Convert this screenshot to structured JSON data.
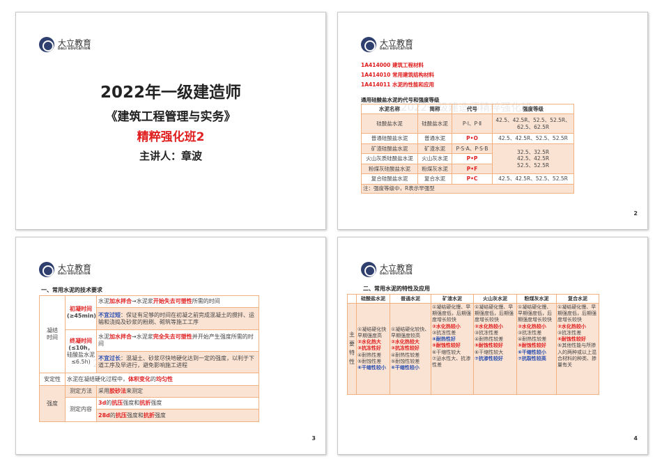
{
  "brand": {
    "cn": "大立教育",
    "en": "DALI EDUCATION"
  },
  "watermark": "2022一级建造师精粹强化班",
  "slide1": {
    "title": "2022年一级建造师",
    "subtitle": "《建筑工程管理与实务》",
    "course": "精粹强化班2",
    "lecturer": "主讲人：章波"
  },
  "slide2": {
    "page": "2",
    "codes": [
      "1A414000  建筑工程材料",
      "1A414010  常用建筑结构材料",
      "1A414011  水泥的性能和应用"
    ],
    "table_title": "通用硅酸盐水泥的代号和强度等级",
    "headers": [
      "水泥名称",
      "简称",
      "代号",
      "强度等级"
    ],
    "rows": [
      {
        "name": "硅酸盐水泥",
        "short": "硅酸盐水泥",
        "code": "P·Ⅰ、P·Ⅱ",
        "grade": "42.5、42.5R、52.5、52.5R、62.5、62.5R"
      },
      {
        "name": "普通硅酸盐水泥",
        "short": "普通水泥",
        "code": "P•O",
        "grade": "42.5、42.5R、52.5、52.5R"
      },
      {
        "name": "矿渣硅酸盐水泥",
        "short": "矿渣水泥",
        "code": "P·S·A、P·S·B",
        "grade": "32.5、32.5R 42.5、42.5R 52.5、52.5R"
      },
      {
        "name": "火山灰质硅酸盐水泥",
        "short": "火山灰水泥",
        "code": "P•P"
      },
      {
        "name": "粉煤灰硅酸盐水泥",
        "short": "粉煤灰水泥",
        "code": "P•F"
      },
      {
        "name": "复合硅酸盐水泥",
        "short": "复合水泥",
        "code": "P•C",
        "grade": "42.5、42.5R、52.5、52.5R"
      }
    ],
    "note": "注：强度等级中，R表示早强型"
  },
  "slide3": {
    "page": "3",
    "heading": "一、常用水泥的技术要求",
    "setting_time": "凝结时间",
    "initial": {
      "label": "初凝时间",
      "limit": "(≥45min)",
      "def": [
        {
          "t": "水泥"
        },
        {
          "t": "加水拌合",
          "c": "r"
        },
        {
          "t": "→水泥浆"
        },
        {
          "t": "开始失去可塑性",
          "c": "r"
        },
        {
          "t": "所需的时间"
        }
      ],
      "note": [
        {
          "t": "不宜过短",
          "c": "b"
        },
        {
          "t": "：保证有足够的时间在初凝之前完成混凝土的搅拌、运输和浇捣及砂浆的粉刷、砌筑等施工工序"
        }
      ]
    },
    "final": {
      "label": "终凝时间",
      "limit": "(≤10h，",
      "limit2": "硅酸盐水泥≤6.5h)",
      "def": [
        {
          "t": "水泥"
        },
        {
          "t": "加水拌合",
          "c": "r"
        },
        {
          "t": "→水泥浆"
        },
        {
          "t": "完全失去可塑性",
          "c": "r"
        },
        {
          "t": "并开始产生强度所需的时间"
        }
      ],
      "note": [
        {
          "t": "不宜过长",
          "c": "b"
        },
        {
          "t": "：混凝土、砂浆尽快地硬化达到一定的强度，以利于下道工序及早进行，避免影响施工进程"
        }
      ]
    },
    "soundness": {
      "label": "安定性",
      "text": [
        {
          "t": "水泥在凝结硬化过程中，"
        },
        {
          "t": "体积变化",
          "c": "r"
        },
        {
          "t": "的"
        },
        {
          "t": "均匀性",
          "c": "r"
        }
      ]
    },
    "strength": {
      "label": "强度",
      "method_label": "测定方法",
      "method": [
        {
          "t": "采用"
        },
        {
          "t": "胶砂法",
          "c": "r"
        },
        {
          "t": "来测定"
        }
      ],
      "content_label": "测定内容",
      "c1": [
        {
          "t": "3d",
          "c": "r"
        },
        {
          "t": "的"
        },
        {
          "t": "抗压",
          "c": "r"
        },
        {
          "t": "强度和"
        },
        {
          "t": "抗折",
          "c": "r"
        },
        {
          "t": "强度"
        }
      ],
      "c2": [
        {
          "t": "28d",
          "c": "r"
        },
        {
          "t": "的"
        },
        {
          "t": "抗压",
          "c": "r"
        },
        {
          "t": "强度和"
        },
        {
          "t": "抗折",
          "c": "r"
        },
        {
          "t": "强度"
        }
      ]
    }
  },
  "slide4": {
    "page": "4",
    "heading": "二、常用水泥的特性及应用",
    "headers": [
      "",
      "硅酸盐水泥",
      "普通水泥",
      "矿渣水泥",
      "火山灰水泥",
      "粉煤灰水泥",
      "复合水泥"
    ],
    "row_label": "主要特性",
    "cells": [
      [
        {
          "t": "①凝结硬化快早期强度高"
        },
        {
          "t": "②水化热大",
          "c": "r"
        },
        {
          "t": "③抗冻性好",
          "c": "r"
        },
        {
          "t": "④耐热性差"
        },
        {
          "t": "⑤耐蚀性差"
        },
        {
          "t": "⑥干缩性较小",
          "c": "b"
        }
      ],
      [
        {
          "t": "①凝结硬化较快、早期强度较高"
        },
        {
          "t": "②水化热较大",
          "c": "r"
        },
        {
          "t": "③抗冻性较好",
          "c": "r"
        },
        {
          "t": "④耐热性较差"
        },
        {
          "t": "⑤耐蚀性较差"
        },
        {
          "t": "⑥干缩性较小",
          "c": "b"
        }
      ],
      [
        {
          "t": "①凝结硬化慢、早期强度低，后期强度增长较快"
        },
        {
          "t": "②水化热较小",
          "c": "r"
        },
        {
          "t": "③抗冻性差"
        },
        {
          "t": "④耐热性好",
          "c": "b"
        },
        {
          "t": "⑤耐蚀性较好",
          "c": "r"
        },
        {
          "t": "⑥干缩性较大"
        },
        {
          "t": "⑦泌水性大、抗渗性差"
        }
      ],
      [
        {
          "t": "①凝结硬化慢、早期强度低，后期强度增长较快"
        },
        {
          "t": "②水化热较小",
          "c": "r"
        },
        {
          "t": "③抗冻性差"
        },
        {
          "t": "④耐热性较差"
        },
        {
          "t": "⑤耐蚀性较好",
          "c": "r"
        },
        {
          "t": "⑥干缩性较大"
        },
        {
          "t": "⑦抗渗性较好",
          "c": "b"
        }
      ],
      [
        {
          "t": "①凝结硬化慢、早期强度低，后期强度增长较快"
        },
        {
          "t": "②水化热较小",
          "c": "r"
        },
        {
          "t": "③抗冻性差"
        },
        {
          "t": "④耐热性较差"
        },
        {
          "t": "⑤耐蚀性较好",
          "c": "r"
        },
        {
          "t": "⑥干缩性较小",
          "c": "b"
        },
        {
          "t": "⑦抗裂性较高",
          "c": "b"
        }
      ],
      [
        {
          "t": "①凝结硬化慢、早期强度低，后期强度增长较快"
        },
        {
          "t": "②水化热较小",
          "c": "r"
        },
        {
          "t": "③抗冻性差"
        },
        {
          "t": "④耐蚀性较好",
          "c": "r"
        },
        {
          "t": "⑤其他性能与所掺入的两种或以上混合材料的种类、掺量有关"
        }
      ]
    ]
  },
  "colors": {
    "red": "#e02020",
    "blue": "#2a4fb0",
    "border": "#f0b080",
    "fill": "#fbe3d3"
  }
}
